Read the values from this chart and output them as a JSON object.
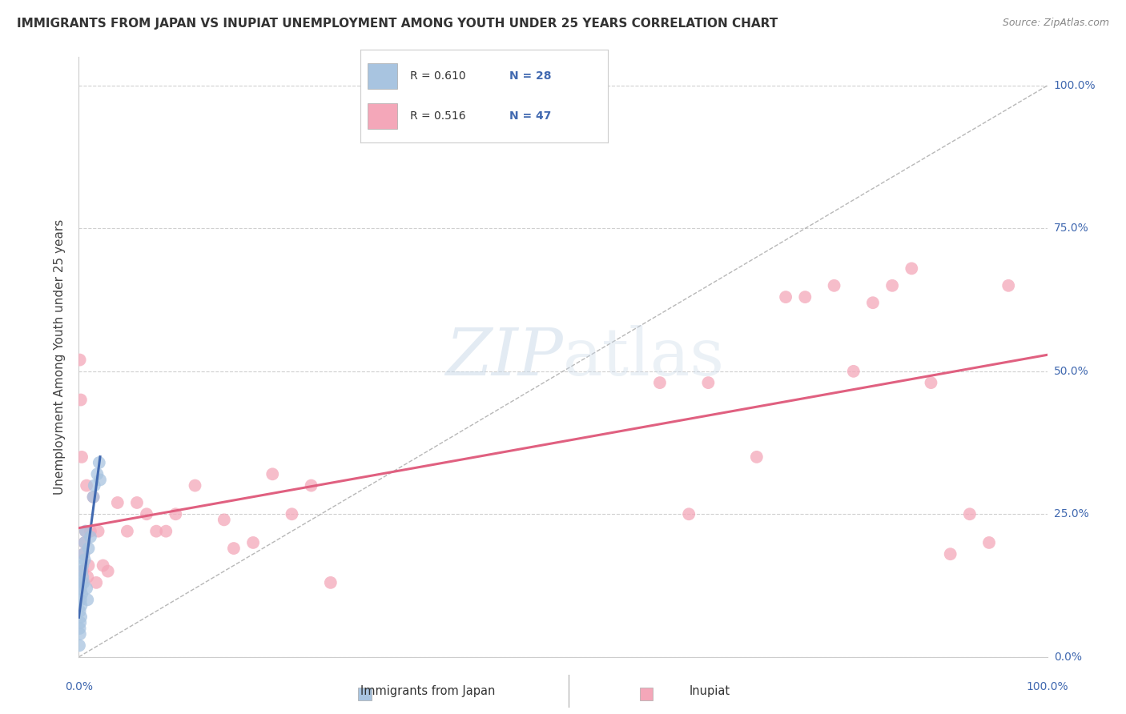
{
  "title": "IMMIGRANTS FROM JAPAN VS INUPIAT UNEMPLOYMENT AMONG YOUTH UNDER 25 YEARS CORRELATION CHART",
  "source": "Source: ZipAtlas.com",
  "ylabel": "Unemployment Among Youth under 25 years",
  "watermark": "ZIPatlas",
  "legend_japan_R": "R = 0.610",
  "legend_japan_N": "N = 28",
  "legend_inupiat_R": "R = 0.516",
  "legend_inupiat_N": "N = 47",
  "legend_label_japan": "Immigrants from Japan",
  "legend_label_inupiat": "Inupiat",
  "japan_color": "#a8c4e0",
  "inupiat_color": "#f4a7b9",
  "japan_line_color": "#4169b0",
  "inupiat_line_color": "#e06080",
  "diagonal_color": "#b0b0b0",
  "ytick_labels": [
    "0.0%",
    "25.0%",
    "50.0%",
    "75.0%",
    "100.0%"
  ],
  "ytick_values": [
    0.0,
    0.25,
    0.5,
    0.75,
    1.0
  ],
  "background_color": "#ffffff",
  "title_color": "#333333",
  "axis_label_color": "#4169b0",
  "grid_color": "#d0d0d0",
  "title_fontsize": 11,
  "label_fontsize": 11,
  "tick_fontsize": 10,
  "legend_R_color": "#333333",
  "legend_N_color": "#4169b0",
  "japan_scatter_x": [
    0.0005,
    0.001,
    0.001,
    0.0012,
    0.0015,
    0.002,
    0.002,
    0.0022,
    0.0025,
    0.003,
    0.003,
    0.003,
    0.004,
    0.004,
    0.005,
    0.005,
    0.006,
    0.006,
    0.007,
    0.008,
    0.009,
    0.01,
    0.012,
    0.015,
    0.016,
    0.019,
    0.021,
    0.022
  ],
  "japan_scatter_y": [
    0.02,
    0.05,
    0.08,
    0.04,
    0.06,
    0.1,
    0.12,
    0.07,
    0.09,
    0.13,
    0.15,
    0.11,
    0.16,
    0.14,
    0.18,
    0.13,
    0.2,
    0.17,
    0.22,
    0.12,
    0.1,
    0.19,
    0.21,
    0.28,
    0.3,
    0.32,
    0.34,
    0.31
  ],
  "inupiat_scatter_x": [
    0.001,
    0.002,
    0.003,
    0.004,
    0.005,
    0.006,
    0.007,
    0.008,
    0.009,
    0.01,
    0.012,
    0.015,
    0.018,
    0.02,
    0.025,
    0.03,
    0.04,
    0.05,
    0.06,
    0.07,
    0.08,
    0.09,
    0.1,
    0.12,
    0.15,
    0.16,
    0.18,
    0.2,
    0.22,
    0.24,
    0.26,
    0.6,
    0.63,
    0.65,
    0.7,
    0.73,
    0.75,
    0.78,
    0.8,
    0.82,
    0.84,
    0.86,
    0.88,
    0.9,
    0.92,
    0.94,
    0.96
  ],
  "inupiat_scatter_y": [
    0.52,
    0.45,
    0.35,
    0.15,
    0.18,
    0.2,
    0.22,
    0.3,
    0.14,
    0.16,
    0.22,
    0.28,
    0.13,
    0.22,
    0.16,
    0.15,
    0.27,
    0.22,
    0.27,
    0.25,
    0.22,
    0.22,
    0.25,
    0.3,
    0.24,
    0.19,
    0.2,
    0.32,
    0.25,
    0.3,
    0.13,
    0.48,
    0.25,
    0.48,
    0.35,
    0.63,
    0.63,
    0.65,
    0.5,
    0.62,
    0.65,
    0.68,
    0.48,
    0.18,
    0.25,
    0.2,
    0.65
  ]
}
